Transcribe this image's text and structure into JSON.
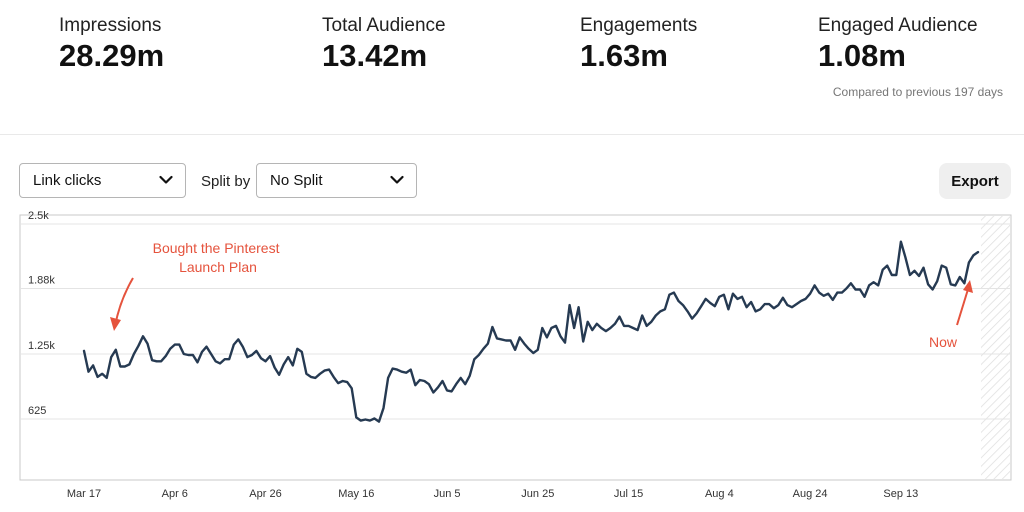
{
  "metrics": [
    {
      "label": "Impressions",
      "value": "28.29m"
    },
    {
      "label": "Total Audience",
      "value": "13.42m"
    },
    {
      "label": "Engagements",
      "value": "1.63m"
    },
    {
      "label": "Engaged Audience",
      "value": "1.08m"
    }
  ],
  "comparison_text": "Compared to previous 197 days",
  "controls": {
    "metric_select": "Link clicks",
    "split_label": "Split by",
    "split_select": "No Split",
    "export_label": "Export"
  },
  "colors": {
    "line": "#263a52",
    "annotation": "#e5533d",
    "grid": "#e4e4e4"
  },
  "chart_data": {
    "type": "line",
    "x_labels": [
      "Mar 17",
      "Apr 6",
      "Apr 26",
      "May 16",
      "Jun 5",
      "Jun 25",
      "Jul 15",
      "Aug 4",
      "Aug 24",
      "Sep 13"
    ],
    "y_ticks": [
      {
        "value": 625,
        "label": "625"
      },
      {
        "value": 1250,
        "label": "1.25k"
      },
      {
        "value": 1880,
        "label": "1.88k"
      },
      {
        "value": 2500,
        "label": "2.5k"
      }
    ],
    "ylim": [
      0,
      2500
    ],
    "x_start": "2019-03-17",
    "series": [
      {
        "values": [
          1280,
          1080,
          1140,
          1030,
          1060,
          1020,
          1220,
          1290,
          1130,
          1130,
          1150,
          1250,
          1330,
          1420,
          1350,
          1190,
          1180,
          1180,
          1230,
          1300,
          1340,
          1340,
          1250,
          1240,
          1240,
          1170,
          1270,
          1320,
          1250,
          1180,
          1160,
          1200,
          1200,
          1340,
          1390,
          1320,
          1220,
          1240,
          1280,
          1210,
          1180,
          1230,
          1120,
          1050,
          1150,
          1220,
          1140,
          1300,
          1270,
          1060,
          1030,
          1020,
          1060,
          1090,
          1100,
          1030,
          970,
          990,
          980,
          920,
          640,
          610,
          620,
          610,
          630,
          600,
          730,
          1020,
          1110,
          1100,
          1080,
          1070,
          1100,
          950,
          1000,
          990,
          960,
          880,
          930,
          990,
          900,
          890,
          960,
          1020,
          960,
          1040,
          1200,
          1240,
          1300,
          1350,
          1510,
          1400,
          1390,
          1380,
          1380,
          1290,
          1410,
          1350,
          1300,
          1260,
          1290,
          1500,
          1410,
          1500,
          1520,
          1420,
          1360,
          1720,
          1500,
          1700,
          1370,
          1560,
          1480,
          1540,
          1500,
          1470,
          1500,
          1540,
          1610,
          1520,
          1520,
          1500,
          1480,
          1620,
          1520,
          1560,
          1620,
          1660,
          1680,
          1820,
          1840,
          1760,
          1720,
          1660,
          1590,
          1640,
          1710,
          1780,
          1740,
          1710,
          1800,
          1820,
          1680,
          1830,
          1780,
          1800,
          1700,
          1750,
          1660,
          1680,
          1730,
          1730,
          1690,
          1720,
          1790,
          1720,
          1700,
          1730,
          1760,
          1780,
          1830,
          1910,
          1840,
          1810,
          1830,
          1770,
          1840,
          1840,
          1880,
          1930,
          1870,
          1870,
          1800,
          1910,
          1940,
          1910,
          2060,
          2100,
          2010,
          2010,
          2330,
          2180,
          2010,
          2050,
          2000,
          2080,
          1920,
          1870,
          1950,
          2100,
          2080,
          1920,
          1910,
          1990,
          1930,
          2130,
          2200,
          2230
        ]
      }
    ],
    "annotations": [
      {
        "lines": [
          "Bought the Pinterest",
          "Launch Plan"
        ]
      },
      {
        "lines": [
          "Now"
        ]
      }
    ],
    "grid": true
  }
}
